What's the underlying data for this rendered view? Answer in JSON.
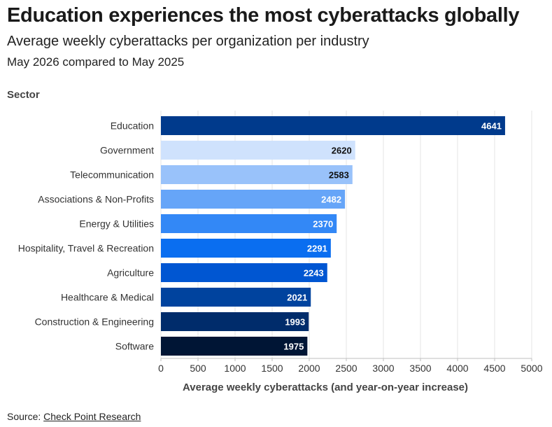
{
  "header": {
    "title": "Education experiences the most cyberattacks globally",
    "subtitle": "Average weekly cyberattacks per organization per industry",
    "subtitle2": "May 2026 compared to May 2025"
  },
  "footer": {
    "source_prefix": "Source: ",
    "source_link": "Check Point Research"
  },
  "chart_data": {
    "type": "bar",
    "orientation": "horizontal",
    "ylabel": "Sector",
    "xlabel": "Average weekly cyberattacks (and year-on-year increase)",
    "xlim": [
      0,
      5000
    ],
    "xticks": [
      0,
      500,
      1000,
      1500,
      2000,
      2500,
      3000,
      3500,
      4000,
      4500,
      5000
    ],
    "grid": true,
    "categories": [
      "Education",
      "Government",
      "Telecommunication",
      "Associations & Non-Profits",
      "Energy & Utilities",
      "Hospitality, Travel & Recreation",
      "Agriculture",
      "Healthcare & Medical",
      "Construction & Engineering",
      "Software"
    ],
    "values": [
      4641,
      2620,
      2583,
      2482,
      2370,
      2291,
      2243,
      2021,
      1993,
      1975
    ],
    "colors": [
      "#003a8c",
      "#cfe2fd",
      "#99c2fa",
      "#66a5f8",
      "#3388f6",
      "#0a6ef0",
      "#0056d2",
      "#00439e",
      "#002c6b",
      "#001535"
    ],
    "label_colors": [
      "#ffffff",
      "#111111",
      "#111111",
      "#ffffff",
      "#ffffff",
      "#ffffff",
      "#ffffff",
      "#ffffff",
      "#ffffff",
      "#ffffff"
    ]
  }
}
